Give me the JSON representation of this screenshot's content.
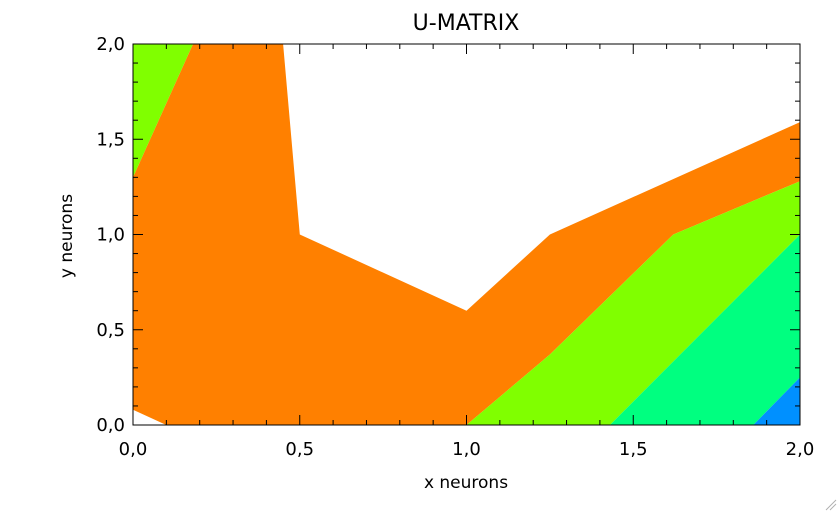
{
  "chart_data": {
    "type": "heatmap",
    "title": "U-MATRIX",
    "xlabel": "x neurons",
    "ylabel": "y neurons",
    "xlim": [
      0,
      2
    ],
    "ylim": [
      0,
      2
    ],
    "x_ticks": [
      "0,0",
      "0,5",
      "1,0",
      "1,5",
      "2,0"
    ],
    "y_ticks": [
      "0,0",
      "0,5",
      "1,0",
      "1,5",
      "2,0"
    ],
    "x_tick_values": [
      0,
      0.5,
      1.0,
      1.5,
      2.0
    ],
    "y_tick_values": [
      0,
      0.5,
      1.0,
      1.5,
      2.0
    ],
    "grid": false,
    "contour_regions": [
      {
        "level": "orange",
        "color": "#ff8000",
        "polygon": [
          [
            0,
            0.08
          ],
          [
            0.1,
            0
          ],
          [
            1.0,
            0
          ],
          [
            1.25,
            0.37
          ],
          [
            1.62,
            1.0
          ],
          [
            2.0,
            1.28
          ],
          [
            2.0,
            1.59
          ],
          [
            1.25,
            1.0
          ],
          [
            1.0,
            0.6
          ],
          [
            0.5,
            1.0
          ],
          [
            0.45,
            2.0
          ],
          [
            0.18,
            2.0
          ],
          [
            0,
            1.3
          ]
        ]
      },
      {
        "level": "yellow-green",
        "color": "#80ff00",
        "polygon": [
          [
            0,
            1.3
          ],
          [
            0.18,
            2.0
          ],
          [
            0,
            2.0
          ]
        ]
      },
      {
        "level": "yellow-green",
        "color": "#80ff00",
        "polygon": [
          [
            1.0,
            0
          ],
          [
            1.43,
            0
          ],
          [
            2.0,
            1.0
          ],
          [
            2.0,
            1.28
          ],
          [
            1.62,
            1.0
          ],
          [
            1.25,
            0.37
          ]
        ]
      },
      {
        "level": "green",
        "color": "#00ff80",
        "polygon": [
          [
            1.43,
            0
          ],
          [
            1.86,
            0
          ],
          [
            2.0,
            0.25
          ],
          [
            2.0,
            1.0
          ]
        ]
      },
      {
        "level": "blue",
        "color": "#0090ff",
        "polygon": [
          [
            1.86,
            0
          ],
          [
            2.0,
            0
          ],
          [
            2.0,
            0.25
          ]
        ]
      }
    ]
  }
}
